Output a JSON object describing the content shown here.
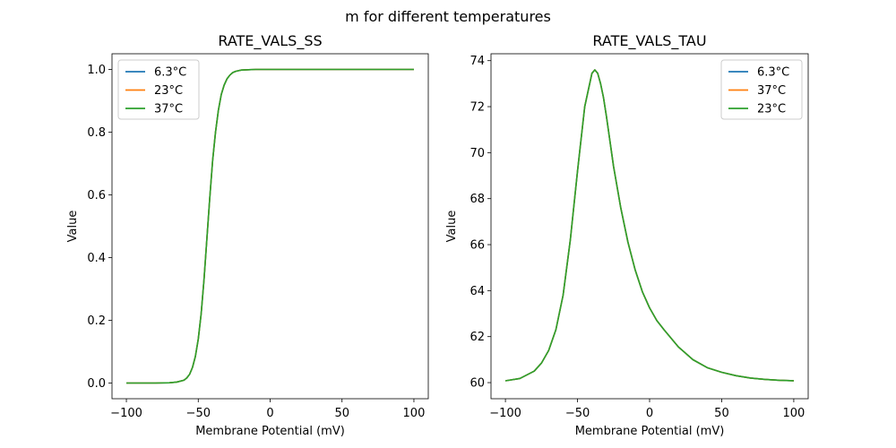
{
  "figure": {
    "suptitle": "m for different temperatures"
  },
  "chart_data": [
    {
      "type": "line",
      "title": "RATE_VALS_SS",
      "xlabel": "Membrane Potential (mV)",
      "ylabel": "Value",
      "xlim": [
        -110,
        110
      ],
      "ylim": [
        -0.05,
        1.05
      ],
      "xticks": [
        -100,
        -50,
        0,
        50,
        100
      ],
      "xtick_labels": [
        "−100",
        "−50",
        "0",
        "50",
        "100"
      ],
      "yticks": [
        0,
        0.2,
        0.4,
        0.6,
        0.8,
        1.0
      ],
      "ytick_labels": [
        "0.0",
        "0.2",
        "0.4",
        "0.6",
        "0.8",
        "1.0"
      ],
      "legend_position": "upper-left",
      "x": [
        -100,
        -90,
        -80,
        -70,
        -65,
        -60,
        -58,
        -56,
        -54,
        -52,
        -50,
        -48,
        -46,
        -44,
        -42,
        -40,
        -38,
        -36,
        -34,
        -32,
        -30,
        -28,
        -26,
        -24,
        -22,
        -20,
        -15,
        -10,
        0,
        20,
        50,
        100
      ],
      "series": [
        {
          "name": "6.3°C",
          "color": "#1f77b4",
          "values": [
            0.0,
            0.0,
            0.0,
            0.001,
            0.003,
            0.009,
            0.016,
            0.028,
            0.05,
            0.085,
            0.14,
            0.22,
            0.33,
            0.46,
            0.59,
            0.71,
            0.8,
            0.87,
            0.92,
            0.95,
            0.97,
            0.982,
            0.99,
            0.994,
            0.996,
            0.998,
            0.999,
            1.0,
            1.0,
            1.0,
            1.0,
            1.0
          ]
        },
        {
          "name": "23°C",
          "color": "#ff7f0e",
          "values": [
            0.0,
            0.0,
            0.0,
            0.001,
            0.003,
            0.009,
            0.016,
            0.028,
            0.05,
            0.085,
            0.14,
            0.22,
            0.33,
            0.46,
            0.59,
            0.71,
            0.8,
            0.87,
            0.92,
            0.95,
            0.97,
            0.982,
            0.99,
            0.994,
            0.996,
            0.998,
            0.999,
            1.0,
            1.0,
            1.0,
            1.0,
            1.0
          ]
        },
        {
          "name": "37°C",
          "color": "#2ca02c",
          "values": [
            0.0,
            0.0,
            0.0,
            0.001,
            0.003,
            0.009,
            0.016,
            0.028,
            0.05,
            0.085,
            0.14,
            0.22,
            0.33,
            0.46,
            0.59,
            0.71,
            0.8,
            0.87,
            0.92,
            0.95,
            0.97,
            0.982,
            0.99,
            0.994,
            0.996,
            0.998,
            0.999,
            1.0,
            1.0,
            1.0,
            1.0,
            1.0
          ]
        }
      ]
    },
    {
      "type": "line",
      "title": "RATE_VALS_TAU",
      "xlabel": "Membrane Potential (mV)",
      "ylabel": "Value",
      "xlim": [
        -110,
        110
      ],
      "ylim": [
        59.3,
        74.3
      ],
      "xticks": [
        -100,
        -50,
        0,
        50,
        100
      ],
      "xtick_labels": [
        "−100",
        "−50",
        "0",
        "50",
        "100"
      ],
      "yticks": [
        60,
        62,
        64,
        66,
        68,
        70,
        72,
        74
      ],
      "ytick_labels": [
        "60",
        "62",
        "64",
        "66",
        "68",
        "70",
        "72",
        "74"
      ],
      "legend_position": "upper-right",
      "x": [
        -100,
        -90,
        -80,
        -75,
        -70,
        -65,
        -60,
        -55,
        -50,
        -45,
        -40,
        -38,
        -36,
        -34,
        -32,
        -30,
        -25,
        -20,
        -15,
        -10,
        -5,
        0,
        5,
        10,
        20,
        30,
        40,
        50,
        60,
        70,
        80,
        90,
        100
      ],
      "series": [
        {
          "name": "6.3°C",
          "color": "#1f77b4",
          "values": [
            60.08,
            60.18,
            60.5,
            60.85,
            61.4,
            62.3,
            63.8,
            66.2,
            69.2,
            72.0,
            73.45,
            73.6,
            73.45,
            73.0,
            72.4,
            71.6,
            69.4,
            67.6,
            66.1,
            64.9,
            63.95,
            63.25,
            62.7,
            62.3,
            61.55,
            61.0,
            60.65,
            60.45,
            60.3,
            60.2,
            60.14,
            60.1,
            60.08
          ]
        },
        {
          "name": "37°C",
          "color": "#ff7f0e",
          "values": [
            60.08,
            60.18,
            60.5,
            60.85,
            61.4,
            62.3,
            63.8,
            66.2,
            69.2,
            72.0,
            73.45,
            73.6,
            73.45,
            73.0,
            72.4,
            71.6,
            69.4,
            67.6,
            66.1,
            64.9,
            63.95,
            63.25,
            62.7,
            62.3,
            61.55,
            61.0,
            60.65,
            60.45,
            60.3,
            60.2,
            60.14,
            60.1,
            60.08
          ]
        },
        {
          "name": "23°C",
          "color": "#2ca02c",
          "values": [
            60.08,
            60.18,
            60.5,
            60.85,
            61.4,
            62.3,
            63.8,
            66.2,
            69.2,
            72.0,
            73.45,
            73.6,
            73.45,
            73.0,
            72.4,
            71.6,
            69.4,
            67.6,
            66.1,
            64.9,
            63.95,
            63.25,
            62.7,
            62.3,
            61.55,
            61.0,
            60.65,
            60.45,
            60.3,
            60.2,
            60.14,
            60.1,
            60.08
          ]
        }
      ]
    }
  ]
}
